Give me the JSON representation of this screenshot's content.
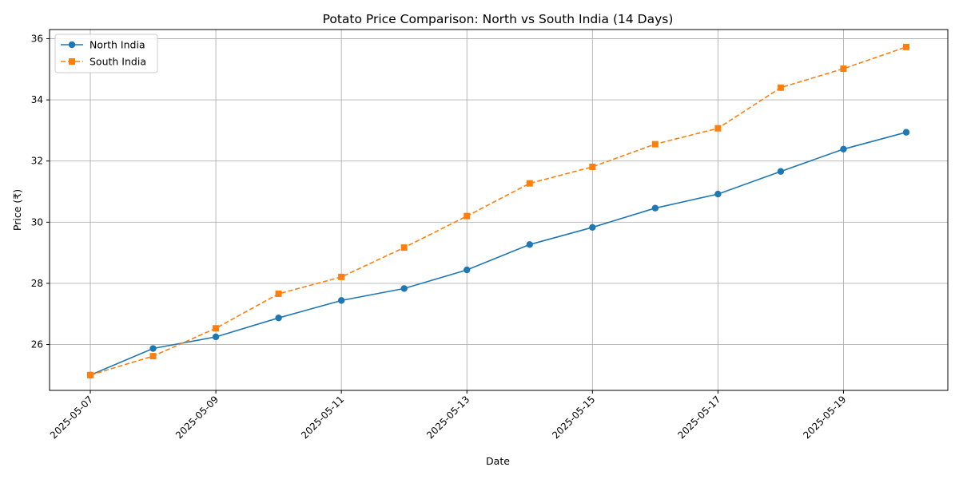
{
  "chart_data": {
    "type": "line",
    "title": "Potato Price Comparison: North vs South India (14 Days)",
    "xlabel": "Date",
    "ylabel": "Price (₹)",
    "x": [
      "2025-05-07",
      "2025-05-08",
      "2025-05-09",
      "2025-05-10",
      "2025-05-11",
      "2025-05-12",
      "2025-05-13",
      "2025-05-14",
      "2025-05-15",
      "2025-05-16",
      "2025-05-17",
      "2025-05-18",
      "2025-05-19",
      "2025-05-20"
    ],
    "x_ticks": [
      "2025-05-07",
      "2025-05-09",
      "2025-05-11",
      "2025-05-13",
      "2025-05-15",
      "2025-05-17",
      "2025-05-19"
    ],
    "y_ticks": [
      26,
      28,
      30,
      32,
      34,
      36
    ],
    "ylim": [
      24.5,
      36.3
    ],
    "grid": true,
    "legend_position": "top-left",
    "series": [
      {
        "name": "North India",
        "color": "#1f77b4",
        "marker": "circle",
        "line_style": "solid",
        "values": [
          25.0,
          25.87,
          26.25,
          26.87,
          27.44,
          27.83,
          28.44,
          29.27,
          29.83,
          30.46,
          30.92,
          31.66,
          32.39,
          32.94
        ]
      },
      {
        "name": "South India",
        "color": "#ff7f0e",
        "marker": "square",
        "line_style": "dashed",
        "values": [
          25.0,
          25.62,
          26.53,
          27.66,
          28.21,
          29.17,
          30.2,
          31.27,
          31.81,
          32.55,
          33.07,
          34.4,
          35.02,
          35.73
        ]
      }
    ]
  }
}
